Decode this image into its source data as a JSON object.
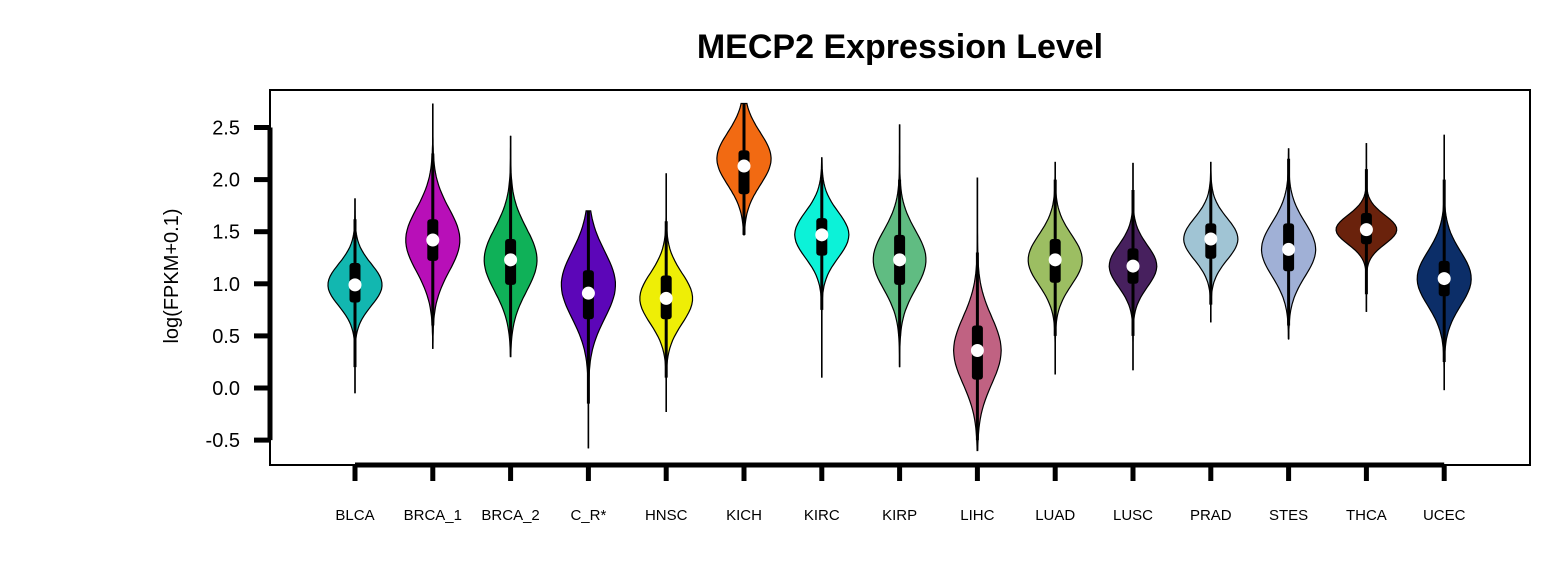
{
  "chart_data": {
    "type": "violin",
    "title": "MECP2 Expression Level",
    "xlabel": "",
    "ylabel": "log(FPKM+0.1)",
    "ylim": [
      -0.75,
      2.75
    ],
    "yticks": [
      -0.5,
      0.0,
      0.5,
      1.0,
      1.5,
      2.0,
      2.5
    ],
    "ytick_labels": [
      "-0.5",
      "0.0",
      "0.5",
      "1.0",
      "1.5",
      "2.0",
      "2.5"
    ],
    "grid": false,
    "legend": "none",
    "categories": [
      "BLCA",
      "BRCA_1",
      "BRCA_2",
      "C_R*",
      "HNSC",
      "KICH",
      "KIRC",
      "KIRP",
      "LIHC",
      "LUAD",
      "LUSC",
      "PRAD",
      "STES",
      "THCA",
      "UCEC"
    ],
    "colors": [
      "#12b7b0",
      "#b80fb8",
      "#0fb158",
      "#5c06b8",
      "#eeee06",
      "#f26a12",
      "#0cf2d8",
      "#60bc82",
      "#c06282",
      "#9cbe62",
      "#47205e",
      "#a0c4d4",
      "#a0b0d6",
      "#6a220c",
      "#0c2e68"
    ],
    "violins": [
      {
        "min": -0.05,
        "max": 1.82,
        "q1": 0.82,
        "median": 0.99,
        "q3": 1.2,
        "wlo": 0.2,
        "whi": 1.62,
        "mode": 0.99,
        "sd": 0.2,
        "width": 0.82
      },
      {
        "min": 0.38,
        "max": 2.73,
        "q1": 1.22,
        "median": 1.42,
        "q3": 1.62,
        "wlo": 0.6,
        "whi": 2.25,
        "mode": 1.42,
        "sd": 0.3,
        "width": 0.82
      },
      {
        "min": 0.3,
        "max": 2.42,
        "q1": 0.99,
        "median": 1.23,
        "q3": 1.43,
        "wlo": 0.5,
        "whi": 2.0,
        "mode": 1.23,
        "sd": 0.3,
        "width": 0.8
      },
      {
        "min": -0.58,
        "max": 1.7,
        "q1": 0.66,
        "median": 0.91,
        "q3": 1.13,
        "wlo": -0.15,
        "whi": 1.7,
        "mode": 0.99,
        "sd": 0.32,
        "width": 0.82
      },
      {
        "min": -0.23,
        "max": 2.06,
        "q1": 0.66,
        "median": 0.86,
        "q3": 1.08,
        "wlo": 0.1,
        "whi": 1.6,
        "mode": 0.86,
        "sd": 0.24,
        "width": 0.8
      },
      {
        "min": 1.47,
        "max": 2.73,
        "q1": 1.86,
        "median": 2.13,
        "q3": 2.28,
        "wlo": 1.47,
        "whi": 2.73,
        "mode": 2.2,
        "sd": 0.25,
        "width": 0.82
      },
      {
        "min": 0.1,
        "max": 2.21,
        "q1": 1.27,
        "median": 1.47,
        "q3": 1.63,
        "wlo": 0.75,
        "whi": 2.0,
        "mode": 1.47,
        "sd": 0.22,
        "width": 0.82
      },
      {
        "min": 0.2,
        "max": 2.53,
        "q1": 0.99,
        "median": 1.23,
        "q3": 1.47,
        "wlo": 0.5,
        "whi": 2.0,
        "mode": 1.23,
        "sd": 0.28,
        "width": 0.8
      },
      {
        "min": -0.6,
        "max": 2.02,
        "q1": 0.08,
        "median": 0.36,
        "q3": 0.6,
        "wlo": -0.5,
        "whi": 1.3,
        "mode": 0.36,
        "sd": 0.32,
        "width": 0.72
      },
      {
        "min": 0.13,
        "max": 2.17,
        "q1": 1.01,
        "median": 1.23,
        "q3": 1.43,
        "wlo": 0.5,
        "whi": 2.0,
        "mode": 1.23,
        "sd": 0.24,
        "width": 0.82
      },
      {
        "min": 0.17,
        "max": 2.16,
        "q1": 1.0,
        "median": 1.17,
        "q3": 1.34,
        "wlo": 0.5,
        "whi": 1.9,
        "mode": 1.17,
        "sd": 0.2,
        "width": 0.72
      },
      {
        "min": 0.63,
        "max": 2.17,
        "q1": 1.24,
        "median": 1.43,
        "q3": 1.58,
        "wlo": 0.8,
        "whi": 1.95,
        "mode": 1.43,
        "sd": 0.2,
        "width": 0.82
      },
      {
        "min": 0.47,
        "max": 2.3,
        "q1": 1.12,
        "median": 1.33,
        "q3": 1.58,
        "wlo": 0.6,
        "whi": 2.2,
        "mode": 1.33,
        "sd": 0.26,
        "width": 0.82
      },
      {
        "min": 0.73,
        "max": 2.35,
        "q1": 1.38,
        "median": 1.52,
        "q3": 1.68,
        "wlo": 0.9,
        "whi": 2.1,
        "mode": 1.52,
        "sd": 0.14,
        "width": 0.92
      },
      {
        "min": -0.02,
        "max": 2.43,
        "q1": 0.88,
        "median": 1.05,
        "q3": 1.22,
        "wlo": 0.25,
        "whi": 2.0,
        "mode": 1.05,
        "sd": 0.26,
        "width": 0.82
      }
    ]
  }
}
